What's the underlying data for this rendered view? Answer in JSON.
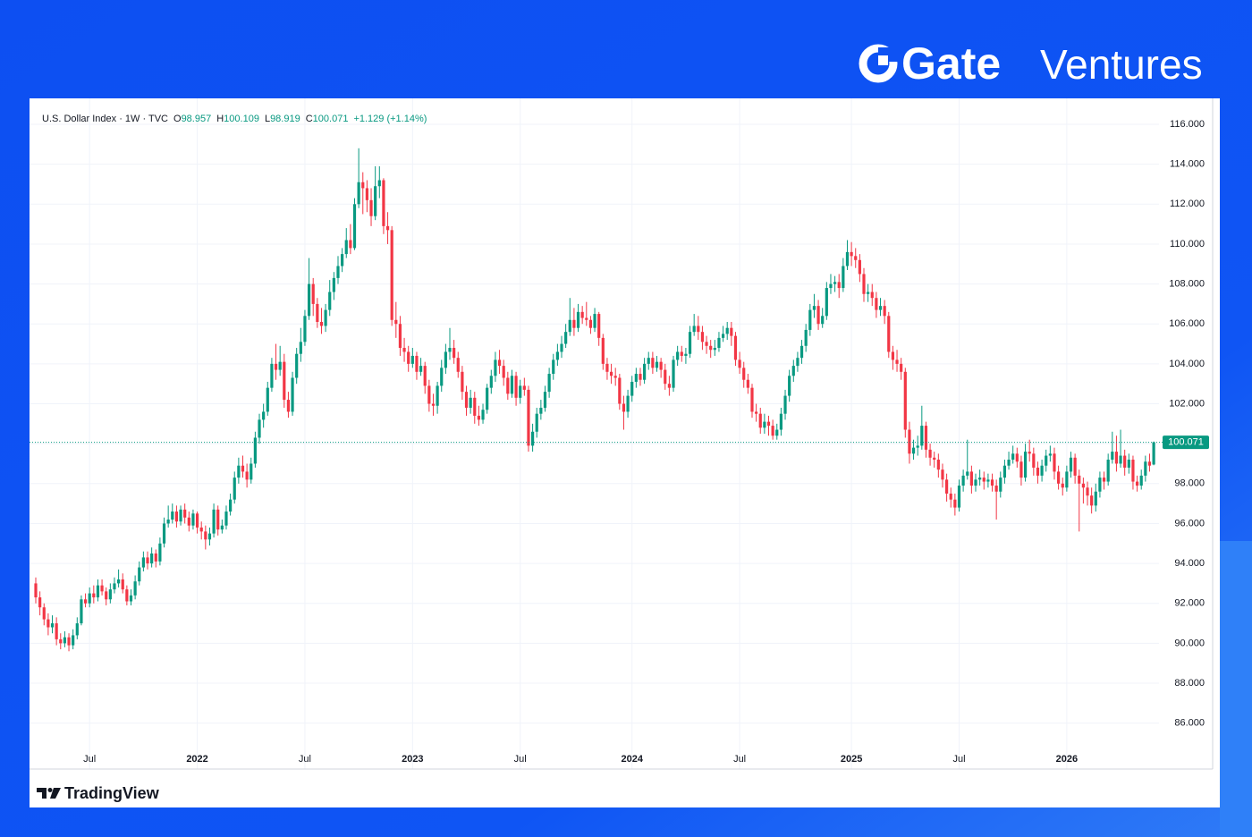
{
  "brand": {
    "name": "Gate",
    "suffix": "Ventures"
  },
  "footer": "TradingView",
  "chart_data": {
    "type": "candlestick",
    "title": "U.S. Dollar Index · 1W · TVC",
    "ohlc_labels": [
      "O",
      "H",
      "L",
      "C"
    ],
    "change_label": "+1.129 (+1.14%)",
    "up_color": "#089981",
    "down_color": "#f23645",
    "grid": true,
    "last_price_line": true,
    "ylim": [
      83.7,
      117.3
    ],
    "yticks": [
      {
        "value": 86,
        "label": "86.000"
      },
      {
        "value": 88,
        "label": "88.000"
      },
      {
        "value": 90,
        "label": "90.000"
      },
      {
        "value": 92,
        "label": "92.000"
      },
      {
        "value": 94,
        "label": "94.000"
      },
      {
        "value": 96,
        "label": "96.000"
      },
      {
        "value": 98,
        "label": "98.000"
      },
      {
        "value": 100,
        "label": "100.000"
      },
      {
        "value": 102,
        "label": "102.000"
      },
      {
        "value": 104,
        "label": "104.000"
      },
      {
        "value": 106,
        "label": "106.000"
      },
      {
        "value": 108,
        "label": "108.000"
      },
      {
        "value": 110,
        "label": "110.000"
      },
      {
        "value": 112,
        "label": "112.000"
      },
      {
        "value": 114,
        "label": "114.000"
      },
      {
        "value": 116,
        "label": "116.000"
      }
    ],
    "categories": [
      null,
      null,
      null,
      null,
      null,
      null,
      null,
      null,
      null,
      null,
      null,
      null,
      null,
      "Jul",
      null,
      null,
      null,
      null,
      null,
      null,
      null,
      null,
      null,
      null,
      null,
      null,
      null,
      null,
      null,
      null,
      null,
      null,
      null,
      null,
      null,
      null,
      null,
      null,
      null,
      "2022",
      null,
      null,
      null,
      null,
      null,
      null,
      null,
      null,
      null,
      null,
      null,
      null,
      null,
      null,
      null,
      null,
      null,
      null,
      null,
      null,
      null,
      null,
      null,
      null,
      null,
      "Jul",
      null,
      null,
      null,
      null,
      null,
      null,
      null,
      null,
      null,
      null,
      null,
      null,
      null,
      null,
      null,
      null,
      null,
      null,
      null,
      null,
      null,
      null,
      null,
      null,
      null,
      "2023",
      null,
      null,
      null,
      null,
      null,
      null,
      null,
      null,
      null,
      null,
      null,
      null,
      null,
      null,
      null,
      null,
      null,
      null,
      null,
      null,
      null,
      null,
      null,
      null,
      null,
      "Jul",
      null,
      null,
      null,
      null,
      null,
      null,
      null,
      null,
      null,
      null,
      null,
      null,
      null,
      null,
      null,
      null,
      null,
      null,
      null,
      null,
      null,
      null,
      null,
      null,
      null,
      null,
      "2024",
      null,
      null,
      null,
      null,
      null,
      null,
      null,
      null,
      null,
      null,
      null,
      null,
      null,
      null,
      null,
      null,
      null,
      null,
      null,
      null,
      null,
      null,
      null,
      null,
      null,
      "Jul",
      null,
      null,
      null,
      null,
      null,
      null,
      null,
      null,
      null,
      null,
      null,
      null,
      null,
      null,
      null,
      null,
      null,
      null,
      null,
      null,
      null,
      null,
      null,
      null,
      null,
      null,
      "2025",
      null,
      null,
      null,
      null,
      null,
      null,
      null,
      null,
      null,
      null,
      null,
      null,
      null,
      null,
      null,
      null,
      null,
      null,
      null,
      null,
      null,
      null,
      null,
      null,
      null,
      "Jul",
      null,
      null,
      null,
      null,
      null,
      null,
      null,
      null,
      null,
      null,
      null,
      null,
      null,
      null,
      null,
      null,
      null,
      null,
      null,
      null,
      null,
      null,
      null,
      null,
      null,
      "2026",
      null,
      null,
      null,
      null,
      null,
      null,
      null,
      null,
      null,
      null,
      null,
      null,
      null,
      null,
      null,
      null,
      null,
      null,
      null,
      null,
      null
    ],
    "open": [
      93.0,
      92.3,
      91.8,
      91.2,
      90.8,
      91.0,
      90.2,
      90.0,
      90.3,
      89.9,
      90.4,
      91.0,
      92.2,
      92.0,
      92.5,
      92.3,
      92.9,
      92.6,
      92.2,
      92.7,
      93.0,
      93.2,
      92.7,
      92.1,
      92.4,
      93.1,
      93.8,
      94.3,
      94.0,
      94.5,
      94.1,
      95.0,
      96.0,
      96.2,
      96.6,
      96.1,
      96.7,
      96.3,
      95.9,
      96.5,
      95.8,
      95.6,
      95.2,
      95.5,
      96.7,
      95.7,
      95.9,
      96.6,
      97.2,
      98.3,
      98.9,
      98.6,
      98.2,
      99.0,
      100.3,
      101.2,
      101.6,
      102.8,
      104.0,
      103.7,
      104.1,
      102.2,
      101.6,
      103.3,
      104.5,
      105.1,
      106.4,
      108.0,
      107.0,
      106.1,
      105.9,
      106.7,
      107.6,
      108.3,
      108.9,
      109.5,
      110.2,
      109.8,
      112.0,
      113.1,
      112.8,
      112.2,
      111.4,
      112.9,
      113.2,
      110.9,
      110.7,
      106.2,
      106.0,
      104.8,
      104.6,
      104.0,
      104.4,
      103.6,
      103.9,
      102.9,
      102.0,
      101.9,
      102.9,
      103.8,
      104.6,
      104.8,
      104.3,
      103.6,
      102.6,
      101.8,
      102.3,
      101.4,
      101.2,
      101.7,
      102.8,
      103.4,
      104.2,
      103.9,
      103.3,
      102.5,
      103.4,
      102.3,
      102.9,
      102.7,
      99.9,
      100.6,
      101.5,
      101.8,
      102.6,
      103.5,
      104.2,
      104.6,
      105.0,
      105.6,
      106.2,
      105.8,
      106.6,
      106.3,
      106.2,
      105.8,
      106.5,
      105.3,
      104.0,
      103.6,
      103.4,
      103.3,
      102.0,
      101.6,
      102.4,
      103.1,
      103.5,
      103.2,
      104.0,
      104.3,
      103.8,
      104.1,
      103.7,
      103.0,
      102.8,
      104.2,
      104.6,
      104.4,
      104.5,
      105.6,
      105.9,
      105.6,
      105.1,
      104.9,
      104.7,
      104.8,
      105.3,
      105.5,
      105.8,
      105.4,
      104.2,
      103.8,
      103.2,
      102.8,
      101.6,
      101.5,
      100.8,
      101.1,
      100.9,
      100.4,
      100.7,
      101.5,
      102.4,
      103.4,
      103.9,
      104.3,
      104.9,
      105.7,
      106.7,
      106.9,
      106.0,
      106.4,
      107.8,
      108.0,
      108.1,
      107.8,
      108.9,
      109.6,
      109.4,
      109.2,
      108.5,
      107.5,
      107.6,
      107.3,
      106.7,
      106.9,
      106.4,
      104.6,
      104.2,
      104.0,
      103.6,
      100.7,
      99.5,
      99.8,
      99.9,
      100.9,
      99.7,
      99.3,
      99.2,
      98.7,
      98.2,
      97.5,
      97.2,
      96.8,
      97.9,
      98.4,
      98.6,
      97.9,
      98.2,
      98.3,
      98.1,
      98.2,
      97.9,
      97.6,
      98.3,
      98.9,
      99.2,
      99.5,
      99.1,
      98.3,
      99.6,
      99.5,
      98.8,
      98.4,
      98.9,
      99.4,
      99.5,
      98.6,
      98.0,
      97.8,
      98.6,
      99.3,
      98.4,
      98.0,
      97.8,
      97.4,
      96.9,
      97.6,
      98.3,
      98.1,
      99.2,
      99.6,
      99.0,
      99.4,
      98.8,
      99.2,
      98.1,
      97.9,
      98.4,
      99.1,
      98.957
    ],
    "high": [
      93.3,
      92.6,
      92.0,
      91.5,
      91.4,
      91.3,
      90.5,
      90.6,
      90.5,
      90.7,
      91.3,
      92.4,
      92.5,
      92.8,
      92.9,
      93.2,
      93.2,
      92.8,
      93.0,
      93.3,
      93.7,
      93.5,
      92.9,
      92.7,
      93.4,
      94.1,
      94.6,
      94.6,
      94.8,
      94.7,
      95.3,
      96.3,
      96.9,
      97.0,
      96.9,
      96.9,
      97.0,
      96.6,
      96.7,
      96.6,
      96.1,
      95.9,
      95.8,
      97.0,
      96.9,
      96.2,
      96.9,
      97.5,
      98.6,
      99.3,
      99.4,
      99.0,
      99.3,
      100.6,
      101.5,
      102.0,
      103.1,
      104.3,
      105.0,
      104.9,
      104.5,
      102.6,
      103.6,
      104.8,
      105.8,
      106.7,
      109.3,
      108.3,
      107.3,
      106.8,
      107.0,
      108.2,
      108.6,
      109.4,
      109.8,
      110.8,
      111.0,
      112.3,
      114.8,
      113.6,
      113.2,
      112.8,
      113.9,
      113.9,
      113.3,
      111.6,
      110.9,
      107.1,
      106.4,
      105.3,
      104.9,
      104.8,
      104.6,
      104.3,
      104.1,
      103.2,
      102.5,
      103.1,
      104.2,
      105.0,
      105.8,
      105.2,
      104.6,
      103.9,
      102.9,
      102.7,
      102.6,
      101.9,
      102.0,
      103.0,
      103.7,
      104.6,
      104.7,
      104.2,
      103.6,
      103.7,
      103.6,
      103.2,
      103.3,
      102.9,
      101.0,
      101.8,
      102.2,
      102.9,
      103.8,
      104.5,
      105.0,
      105.4,
      106.0,
      107.3,
      106.8,
      107.0,
      106.9,
      107.1,
      106.4,
      106.8,
      106.6,
      105.5,
      104.3,
      104.0,
      103.8,
      103.5,
      102.4,
      102.7,
      103.4,
      103.8,
      103.8,
      104.3,
      104.6,
      104.6,
      104.4,
      104.3,
      104.0,
      103.4,
      104.4,
      104.9,
      104.9,
      104.8,
      105.9,
      106.5,
      106.4,
      105.9,
      105.4,
      105.2,
      105.2,
      105.6,
      105.9,
      106.1,
      106.1,
      105.6,
      104.6,
      104.1,
      103.5,
      103.0,
      102.0,
      101.8,
      101.5,
      101.4,
      101.2,
      101.0,
      101.8,
      102.7,
      103.7,
      104.2,
      104.6,
      105.2,
      106.0,
      107.0,
      107.5,
      107.2,
      106.8,
      108.1,
      108.5,
      108.4,
      108.5,
      109.3,
      110.2,
      110.1,
      109.8,
      109.5,
      108.8,
      108.0,
      108.0,
      107.6,
      107.3,
      107.2,
      106.6,
      104.9,
      104.7,
      104.3,
      103.8,
      101.1,
      100.2,
      100.4,
      101.9,
      101.1,
      100.0,
      99.6,
      99.5,
      99.0,
      98.5,
      97.8,
      97.5,
      98.2,
      98.7,
      100.2,
      98.9,
      98.5,
      98.7,
      98.6,
      98.5,
      98.5,
      98.2,
      98.6,
      99.2,
      99.6,
      99.9,
      99.8,
      99.4,
      100.0,
      100.2,
      99.8,
      99.1,
      99.2,
      99.7,
      99.9,
      99.8,
      98.9,
      98.3,
      98.9,
      99.6,
      99.5,
      98.7,
      98.3,
      98.1,
      97.8,
      98.0,
      98.6,
      98.6,
      99.5,
      100.6,
      100.4,
      100.7,
      99.7,
      99.5,
      99.4,
      98.4,
      98.7,
      99.4,
      99.5,
      100.109
    ],
    "low": [
      92.0,
      91.4,
      90.9,
      90.4,
      90.5,
      89.9,
      89.7,
      89.8,
      89.6,
      89.7,
      90.2,
      90.9,
      91.8,
      91.8,
      92.0,
      92.1,
      92.4,
      91.9,
      92.0,
      92.5,
      92.8,
      92.5,
      91.9,
      91.9,
      92.2,
      92.9,
      93.6,
      93.7,
      93.8,
      93.8,
      93.9,
      94.8,
      95.8,
      96.0,
      95.8,
      95.9,
      96.0,
      95.6,
      95.7,
      95.5,
      95.2,
      94.7,
      94.9,
      95.3,
      95.4,
      95.5,
      95.7,
      96.4,
      97.0,
      98.0,
      98.3,
      97.8,
      98.0,
      98.8,
      100.0,
      100.8,
      101.4,
      102.6,
      103.2,
      103.4,
      101.8,
      101.3,
      101.4,
      103.0,
      104.1,
      104.9,
      106.2,
      106.4,
      105.8,
      105.5,
      105.6,
      106.4,
      107.2,
      108.0,
      108.6,
      109.3,
      109.5,
      109.7,
      111.8,
      111.5,
      111.6,
      110.9,
      111.2,
      112.3,
      110.5,
      110.0,
      105.9,
      105.3,
      104.4,
      104.1,
      103.6,
      103.8,
      103.2,
      103.4,
      102.5,
      101.6,
      101.4,
      101.5,
      102.6,
      103.5,
      104.2,
      104.0,
      103.3,
      102.2,
      101.4,
      101.5,
      101.0,
      100.9,
      101.0,
      101.5,
      102.5,
      103.1,
      103.5,
      102.9,
      102.2,
      102.3,
      101.9,
      102.0,
      102.4,
      99.6,
      99.6,
      100.3,
      101.2,
      101.6,
      102.3,
      103.2,
      103.9,
      104.3,
      104.8,
      105.4,
      105.4,
      105.6,
      106.0,
      105.9,
      105.5,
      105.6,
      104.9,
      103.7,
      103.2,
      103.0,
      102.9,
      101.7,
      100.7,
      101.3,
      102.1,
      102.8,
      102.9,
      103.0,
      103.7,
      103.5,
      103.6,
      103.3,
      102.7,
      102.4,
      102.6,
      103.9,
      104.1,
      104.0,
      104.3,
      105.4,
      105.2,
      104.7,
      104.5,
      104.3,
      104.4,
      104.6,
      105.1,
      105.2,
      104.9,
      103.9,
      103.5,
      102.8,
      102.5,
      101.3,
      101.1,
      100.5,
      100.5,
      100.4,
      100.2,
      100.2,
      100.4,
      101.2,
      102.1,
      103.1,
      103.6,
      104.0,
      104.6,
      105.4,
      106.3,
      105.7,
      105.8,
      106.2,
      107.5,
      107.6,
      107.3,
      107.6,
      108.7,
      108.9,
      108.8,
      108.1,
      107.1,
      107.1,
      106.9,
      106.3,
      106.4,
      106.0,
      104.3,
      103.7,
      103.6,
      103.2,
      100.3,
      99.0,
      99.2,
      99.4,
      99.7,
      99.3,
      98.9,
      98.8,
      98.3,
      97.8,
      97.1,
      96.8,
      96.4,
      96.6,
      97.6,
      98.2,
      97.5,
      97.6,
      97.9,
      97.7,
      97.8,
      97.6,
      96.2,
      97.3,
      98.0,
      98.7,
      99.0,
      98.8,
      97.9,
      98.1,
      99.1,
      98.4,
      98.0,
      98.1,
      98.6,
      99.1,
      98.2,
      97.7,
      97.4,
      97.6,
      98.3,
      98.0,
      95.6,
      97.0,
      96.9,
      96.5,
      96.6,
      97.3,
      97.7,
      97.9,
      99.0,
      98.6,
      98.8,
      98.4,
      98.5,
      97.7,
      97.6,
      97.7,
      98.1,
      98.6,
      98.919
    ],
    "close": [
      92.3,
      91.8,
      91.2,
      90.8,
      91.0,
      90.2,
      90.0,
      90.3,
      89.9,
      90.4,
      91.0,
      92.2,
      92.0,
      92.5,
      92.3,
      92.9,
      92.6,
      92.2,
      92.7,
      93.0,
      93.2,
      92.7,
      92.1,
      92.4,
      93.1,
      93.8,
      94.3,
      94.0,
      94.5,
      94.1,
      95.0,
      96.0,
      96.2,
      96.6,
      96.1,
      96.7,
      96.3,
      95.9,
      96.5,
      95.8,
      95.6,
      95.2,
      95.5,
      96.7,
      95.7,
      95.9,
      96.6,
      97.2,
      98.3,
      98.9,
      98.6,
      98.2,
      99.0,
      100.3,
      101.2,
      101.6,
      102.8,
      104.0,
      103.7,
      104.1,
      102.2,
      101.6,
      103.3,
      104.5,
      105.1,
      106.4,
      108.0,
      107.0,
      106.1,
      105.9,
      106.7,
      107.6,
      108.3,
      108.9,
      109.5,
      110.2,
      109.8,
      112.0,
      113.1,
      112.8,
      112.2,
      111.4,
      112.9,
      113.2,
      110.9,
      110.7,
      106.2,
      106.0,
      104.8,
      104.6,
      104.0,
      104.4,
      103.6,
      103.9,
      102.9,
      102.0,
      101.9,
      102.9,
      103.8,
      104.6,
      104.8,
      104.3,
      103.6,
      102.6,
      101.8,
      102.3,
      101.4,
      101.2,
      101.7,
      102.8,
      103.4,
      104.2,
      103.9,
      103.3,
      102.5,
      103.4,
      102.3,
      102.9,
      102.7,
      99.9,
      100.6,
      101.5,
      101.8,
      102.6,
      103.5,
      104.2,
      104.6,
      105.0,
      105.6,
      106.2,
      105.8,
      106.6,
      106.3,
      106.2,
      105.8,
      106.5,
      105.3,
      104.0,
      103.6,
      103.4,
      103.3,
      102.0,
      101.6,
      102.4,
      103.1,
      103.5,
      103.2,
      104.0,
      104.3,
      103.8,
      104.1,
      103.7,
      103.0,
      102.8,
      104.2,
      104.6,
      104.4,
      104.5,
      105.6,
      105.9,
      105.6,
      105.1,
      104.9,
      104.7,
      104.8,
      105.3,
      105.5,
      105.8,
      105.4,
      104.2,
      103.8,
      103.2,
      102.8,
      101.6,
      101.5,
      100.8,
      101.1,
      100.9,
      100.4,
      100.7,
      101.5,
      102.4,
      103.4,
      103.9,
      104.3,
      104.9,
      105.7,
      106.7,
      106.9,
      106.0,
      106.4,
      107.8,
      108.0,
      108.1,
      107.8,
      108.9,
      109.6,
      109.4,
      109.2,
      108.5,
      107.5,
      107.6,
      107.3,
      106.7,
      106.9,
      106.4,
      104.6,
      104.2,
      104.0,
      103.6,
      100.7,
      99.5,
      99.8,
      99.9,
      100.9,
      99.7,
      99.3,
      99.2,
      98.7,
      98.2,
      97.5,
      97.2,
      96.8,
      97.9,
      98.4,
      98.6,
      97.9,
      98.2,
      98.3,
      98.1,
      98.2,
      97.9,
      97.6,
      98.3,
      98.9,
      99.2,
      99.5,
      99.1,
      98.3,
      99.6,
      99.5,
      98.8,
      98.4,
      98.9,
      99.4,
      99.5,
      98.6,
      98.0,
      97.8,
      98.6,
      99.3,
      98.4,
      98.0,
      97.8,
      97.4,
      96.9,
      97.6,
      98.3,
      98.1,
      99.2,
      99.6,
      99.0,
      99.4,
      98.8,
      99.2,
      98.1,
      97.9,
      98.4,
      99.1,
      98.9,
      100.071
    ]
  }
}
